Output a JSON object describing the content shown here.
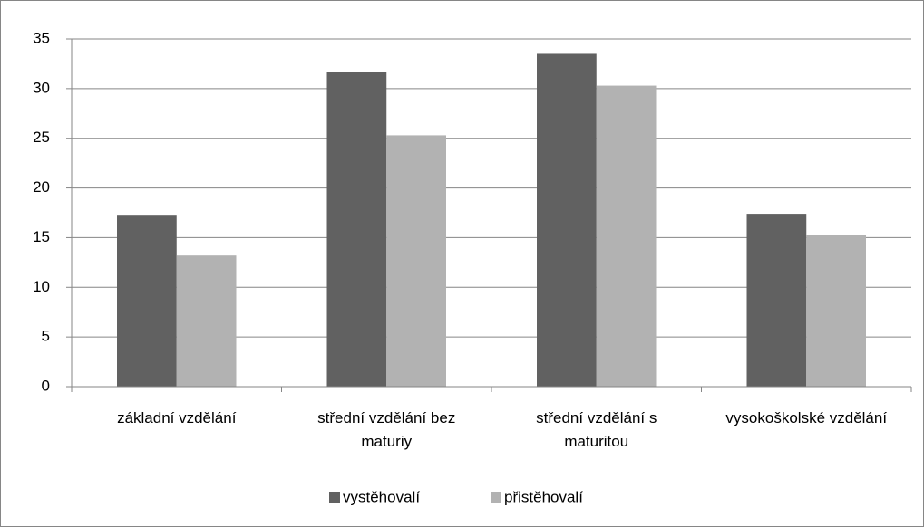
{
  "chart_data": {
    "type": "bar",
    "categories": [
      "základní vzdělání",
      "střední vzdělání bez maturiy",
      "střední vzdělání s maturitou",
      "vysokoškolské vzdělání"
    ],
    "series": [
      {
        "name": "vystěhovalí",
        "color": "#616161",
        "values": [
          17.3,
          31.7,
          33.5,
          17.4
        ]
      },
      {
        "name": "přistěhovalí",
        "color": "#b2b2b2",
        "values": [
          13.2,
          25.3,
          30.3,
          15.3
        ]
      }
    ],
    "ylim": [
      0,
      35
    ],
    "yticks": [
      0,
      5,
      10,
      15,
      20,
      25,
      30,
      35
    ],
    "grid": true,
    "legend": "bottom"
  }
}
